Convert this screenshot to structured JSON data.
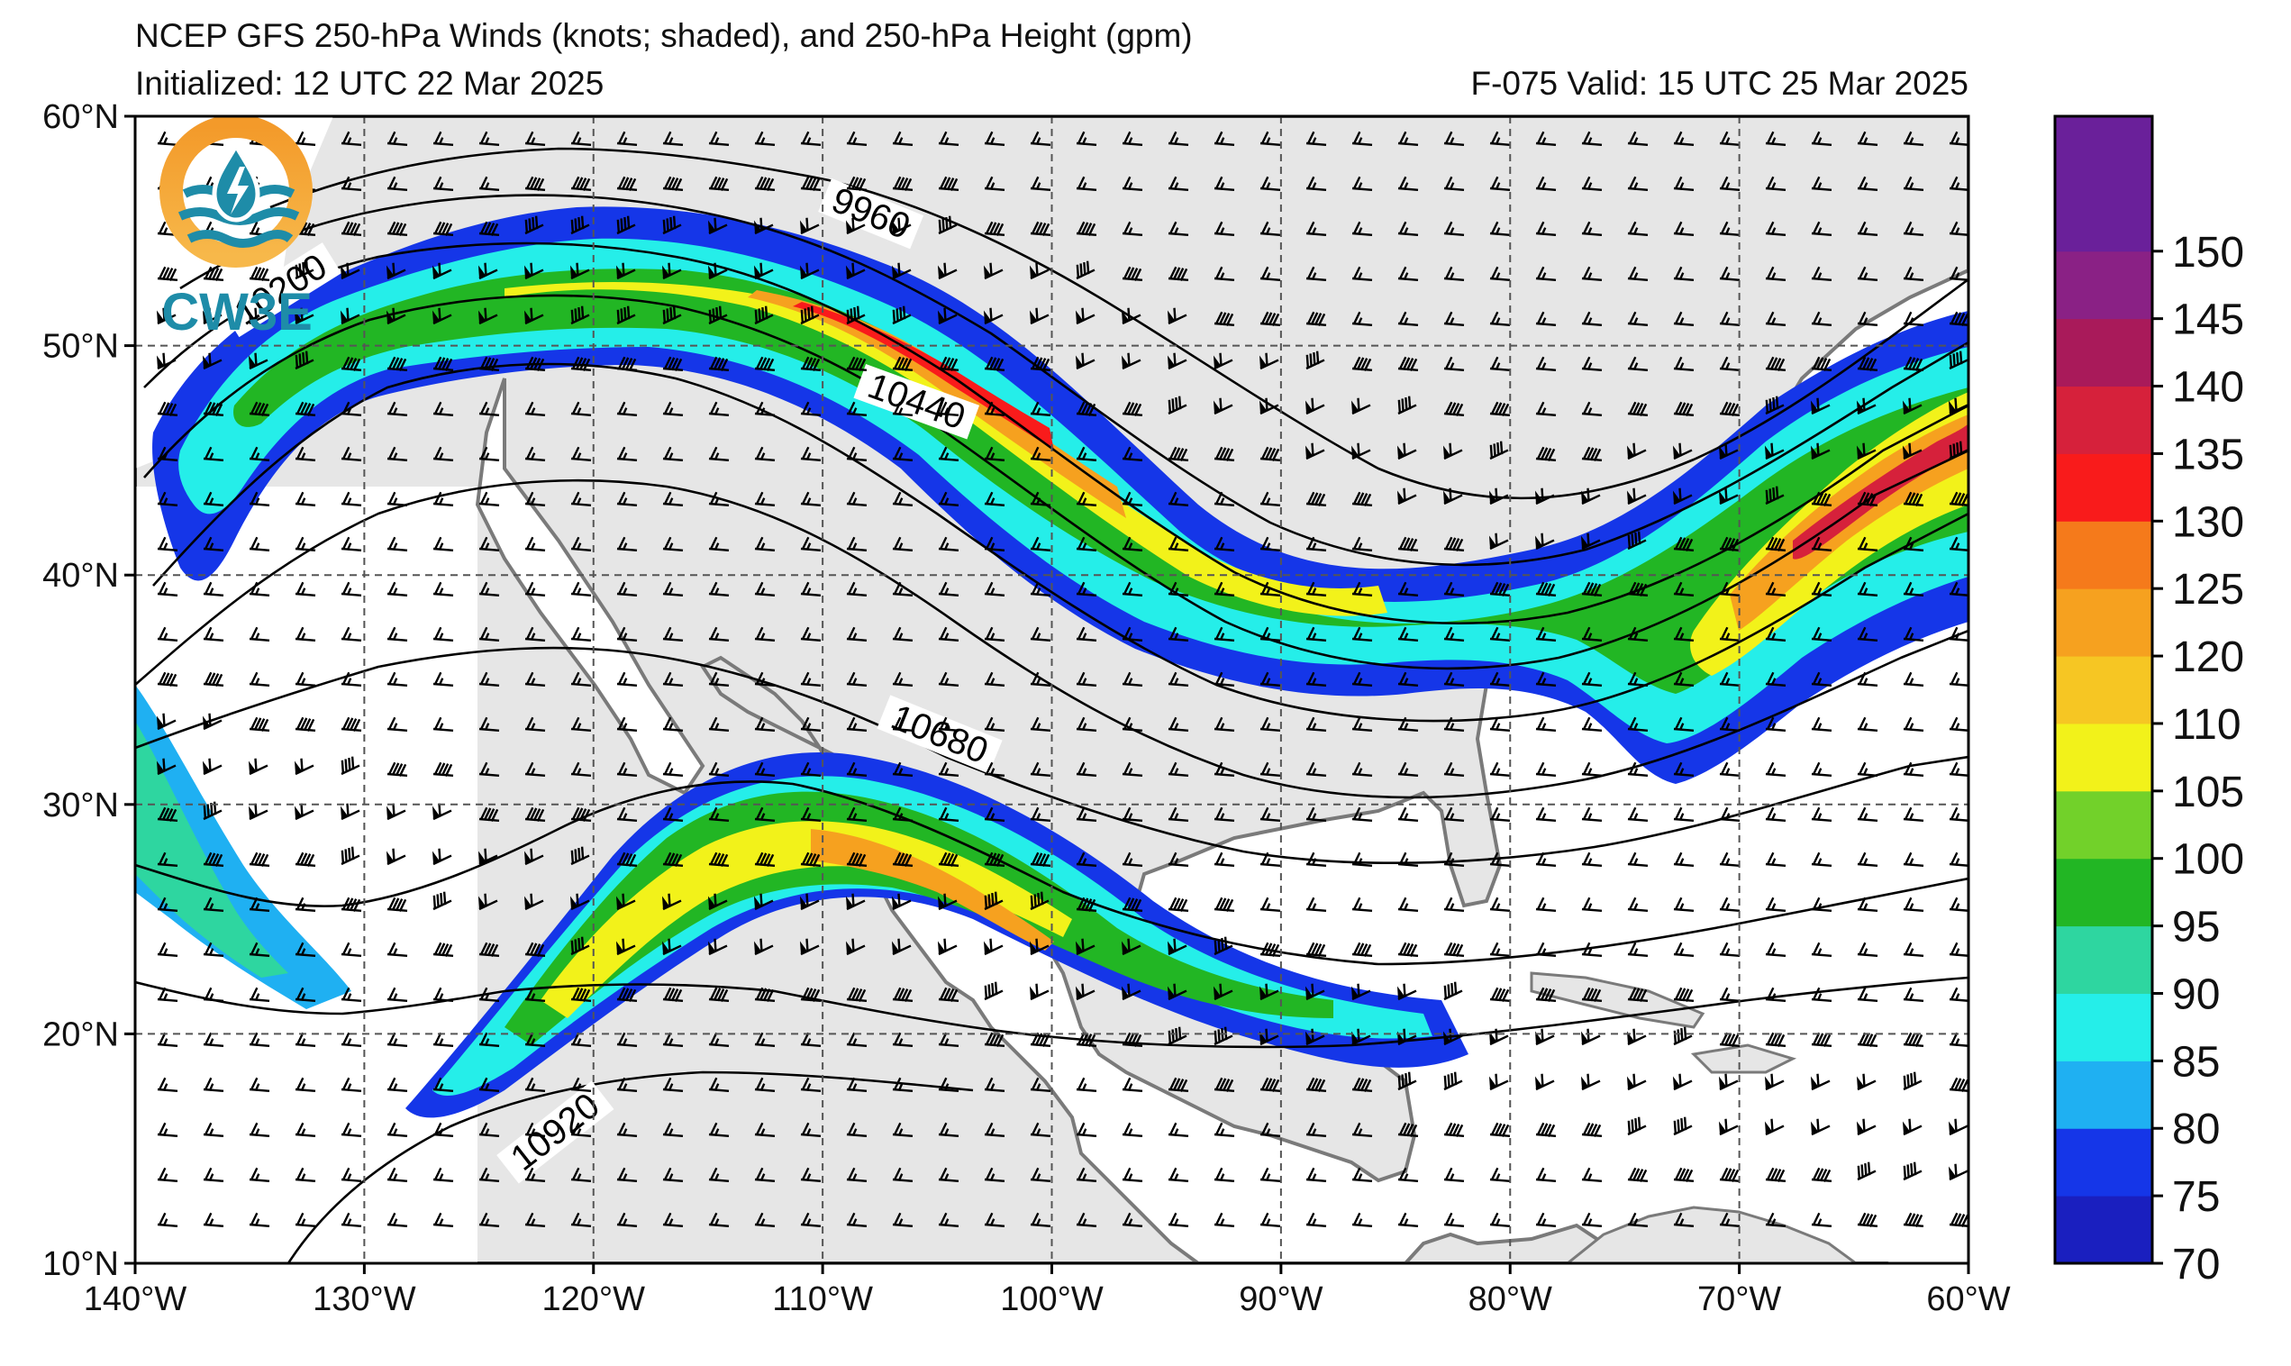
{
  "header": {
    "title": "NCEP GFS 250-hPa Winds (knots; shaded), and 250-hPa Height (gpm)",
    "initialized": "Initialized: 12 UTC 22 Mar 2025",
    "valid": "F-075  Valid: 15 UTC 25 Mar 2025"
  },
  "logo": {
    "text": "CW3E"
  },
  "map": {
    "lon_range": [
      -140,
      -60
    ],
    "lat_range": [
      10,
      60
    ],
    "lon_ticks": [
      {
        "value": -140,
        "label": "140°W"
      },
      {
        "value": -130,
        "label": "130°W"
      },
      {
        "value": -120,
        "label": "120°W"
      },
      {
        "value": -110,
        "label": "110°W"
      },
      {
        "value": -100,
        "label": "100°W"
      },
      {
        "value": -90,
        "label": "90°W"
      },
      {
        "value": -80,
        "label": "80°W"
      },
      {
        "value": -70,
        "label": "70°W"
      },
      {
        "value": -60,
        "label": "60°W"
      }
    ],
    "lat_ticks": [
      {
        "value": 60,
        "label": "60°N"
      },
      {
        "value": 50,
        "label": "50°N"
      },
      {
        "value": 40,
        "label": "40°N"
      },
      {
        "value": 30,
        "label": "30°N"
      },
      {
        "value": 20,
        "label": "20°N"
      },
      {
        "value": 10,
        "label": "10°N"
      }
    ],
    "grid": true,
    "contour_labels": [
      {
        "text": "9960",
        "lon": -108,
        "lat": 55.5,
        "rotate": 22
      },
      {
        "text": "10200",
        "lon": -133.5,
        "lat": 52.2,
        "rotate": -32
      },
      {
        "text": "10440",
        "lon": -106,
        "lat": 47.3,
        "rotate": 20
      },
      {
        "text": "10680",
        "lon": -105,
        "lat": 32.8,
        "rotate": 22
      },
      {
        "text": "10920",
        "lon": -121.5,
        "lat": 15.5,
        "rotate": -38
      }
    ]
  },
  "colorbar": {
    "min": 70,
    "max": 155,
    "ticks": [
      {
        "label": "150",
        "value": 150
      },
      {
        "label": "145",
        "value": 145
      },
      {
        "label": "140",
        "value": 140
      },
      {
        "label": "135",
        "value": 135
      },
      {
        "label": "130",
        "value": 130
      },
      {
        "label": "125",
        "value": 125
      },
      {
        "label": "120",
        "value": 120
      },
      {
        "label": "110",
        "value": 110
      },
      {
        "label": "105",
        "value": 105
      },
      {
        "label": "100",
        "value": 100
      },
      {
        "label": "95",
        "value": 95
      },
      {
        "label": "90",
        "value": 90
      },
      {
        "label": "85",
        "value": 85
      },
      {
        "label": "80",
        "value": 80
      },
      {
        "label": "75",
        "value": 75
      },
      {
        "label": "70",
        "value": 70
      }
    ],
    "colors": [
      "#1a1fbf",
      "#1536e8",
      "#1fb0f2",
      "#25eee9",
      "#2ed6a0",
      "#22b624",
      "#72d12a",
      "#f2f21a",
      "#f6c623",
      "#f6a11f",
      "#f57a1b",
      "#f91b1b",
      "#d6213b",
      "#a91a5a",
      "#8a2185",
      "#6a209a",
      "#6a209a"
    ]
  }
}
